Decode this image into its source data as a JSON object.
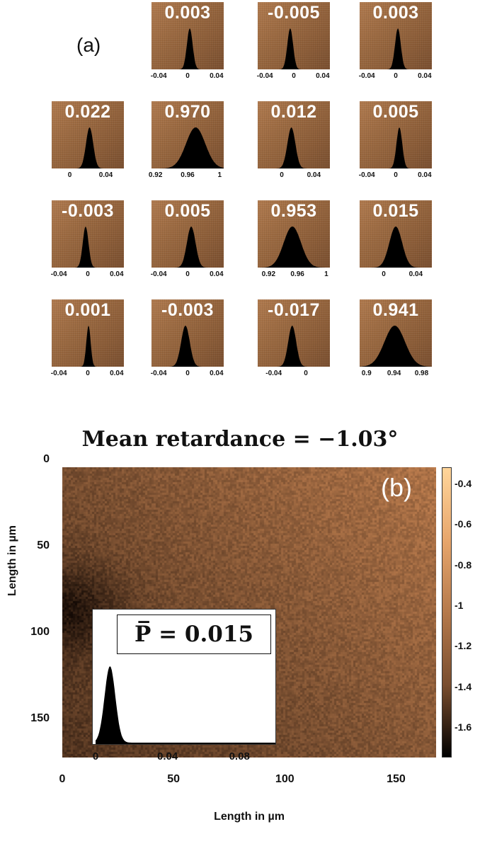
{
  "panel_a": {
    "label": "(a)",
    "cells": [
      null,
      {
        "value": "0.003",
        "ticks": [
          "-0.04",
          "0",
          "0.04"
        ],
        "xlim": [
          -0.05,
          0.05
        ],
        "peak": 0.003,
        "width": 0.004
      },
      {
        "value": "-0.005",
        "ticks": [
          "-0.04",
          "0",
          "0.04"
        ],
        "xlim": [
          -0.05,
          0.05
        ],
        "peak": -0.005,
        "width": 0.004
      },
      {
        "value": "0.003",
        "ticks": [
          "-0.04",
          "0",
          "0.04"
        ],
        "xlim": [
          -0.05,
          0.05
        ],
        "peak": 0.003,
        "width": 0.004
      },
      {
        "value": "0.022",
        "ticks": [
          "0",
          "0.04"
        ],
        "xlim": [
          -0.02,
          0.06
        ],
        "peak": 0.022,
        "width": 0.004
      },
      {
        "value": "0.970",
        "ticks": [
          "0.92",
          "0.96",
          "1"
        ],
        "xlim": [
          0.915,
          1.005
        ],
        "peak": 0.97,
        "width": 0.012
      },
      {
        "value": "0.012",
        "ticks": [
          "0",
          "0.04"
        ],
        "xlim": [
          -0.03,
          0.06
        ],
        "peak": 0.012,
        "width": 0.005
      },
      {
        "value": "0.005",
        "ticks": [
          "-0.04",
          "0",
          "0.04"
        ],
        "xlim": [
          -0.05,
          0.05
        ],
        "peak": 0.005,
        "width": 0.004
      },
      {
        "value": "-0.003",
        "ticks": [
          "-0.04",
          "0",
          "0.04"
        ],
        "xlim": [
          -0.05,
          0.05
        ],
        "peak": -0.003,
        "width": 0.004
      },
      {
        "value": "0.005",
        "ticks": [
          "-0.04",
          "0",
          "0.04"
        ],
        "xlim": [
          -0.05,
          0.05
        ],
        "peak": 0.005,
        "width": 0.006
      },
      {
        "value": "0.953",
        "ticks": [
          "0.92",
          "0.96",
          "1"
        ],
        "xlim": [
          0.905,
          1.005
        ],
        "peak": 0.953,
        "width": 0.012
      },
      {
        "value": "0.015",
        "ticks": [
          "0",
          "0.04"
        ],
        "xlim": [
          -0.03,
          0.06
        ],
        "peak": 0.015,
        "width": 0.008
      },
      {
        "value": "0.001",
        "ticks": [
          "-0.04",
          "0",
          "0.04"
        ],
        "xlim": [
          -0.05,
          0.05
        ],
        "peak": 0.001,
        "width": 0.003
      },
      {
        "value": "-0.003",
        "ticks": [
          "-0.04",
          "0",
          "0.04"
        ],
        "xlim": [
          -0.05,
          0.05
        ],
        "peak": -0.003,
        "width": 0.006
      },
      {
        "value": "-0.017",
        "ticks": [
          "-0.04",
          "0"
        ],
        "xlim": [
          -0.06,
          0.03
        ],
        "peak": -0.017,
        "width": 0.005
      },
      {
        "value": "0.941",
        "ticks": [
          "0.9",
          "0.94",
          "0.98"
        ],
        "xlim": [
          0.89,
          0.995
        ],
        "peak": 0.941,
        "width": 0.015
      }
    ]
  },
  "panel_b": {
    "title": "Mean retardance = −1.03°",
    "label": "(b)",
    "y_ticks": [
      "0",
      "50",
      "100",
      "150"
    ],
    "x_ticks": [
      "0",
      "50",
      "100",
      "150"
    ],
    "xlabel": "Length in µm",
    "ylabel": "Length in µm",
    "colorbar_ticks": [
      "-0.4",
      "-0.6",
      "-0.8",
      "-1",
      "-1.2",
      "-1.4",
      "-1.6"
    ],
    "colorbar_range": [
      -1.75,
      -0.32
    ],
    "inset": {
      "label": "P̅ = 0.015",
      "ticks": [
        "0",
        "0.04",
        "0.08"
      ],
      "xlim": [
        0,
        0.1
      ],
      "peak": 0.008,
      "width": 0.003
    }
  },
  "chart_data": [
    {
      "type": "heatmap",
      "title": "",
      "note_values": "4x4 grid of histograms with mean values",
      "values": [
        [
          null,
          0.003,
          -0.005,
          0.003
        ],
        [
          0.022,
          0.97,
          0.012,
          0.005
        ],
        [
          -0.003,
          0.005,
          0.953,
          0.015
        ],
        [
          0.001,
          -0.003,
          -0.017,
          0.941
        ]
      ]
    },
    {
      "type": "heatmap",
      "title": "Mean retardance = −1.03°",
      "xlabel": "Length in µm",
      "ylabel": "Length in µm",
      "xlim": [
        0,
        168
      ],
      "ylim": [
        168,
        0
      ],
      "colorbar_range": [
        -1.75,
        -0.32
      ],
      "mean": -1.03,
      "inset_histogram": {
        "mean": 0.015,
        "xlim": [
          0,
          0.1
        ]
      }
    }
  ],
  "colors": {
    "tissue_mid": "#9c6a41",
    "histogram": "#000000",
    "text_overlay": "#ffffff"
  }
}
